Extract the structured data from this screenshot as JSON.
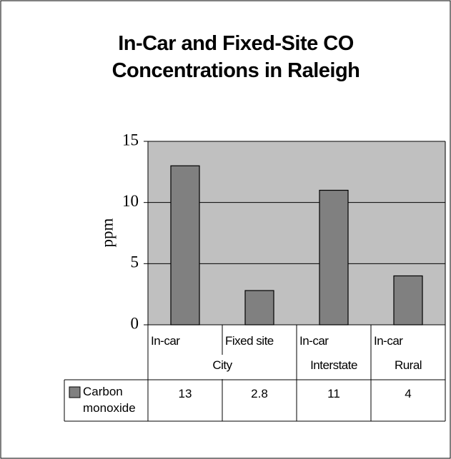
{
  "chart_data": {
    "type": "bar",
    "title": "In-Car and Fixed-Site CO Concentrations in Raleigh",
    "y_label": "ppm",
    "categories": [
      "In-car",
      "Fixed site",
      "In-car",
      "In-car"
    ],
    "groups": [
      {
        "name": "City",
        "span": 2
      },
      {
        "name": "Interstate",
        "span": 1
      },
      {
        "name": "Rural",
        "span": 1
      }
    ],
    "series": [
      {
        "name": "Carbon monoxide",
        "color": "#808080",
        "values": [
          13,
          2.8,
          11,
          4
        ]
      }
    ],
    "ylim": [
      0,
      15
    ],
    "yticks": [
      0,
      5,
      10,
      15
    ],
    "grid": true,
    "plot_background": "#c0c0c0"
  }
}
